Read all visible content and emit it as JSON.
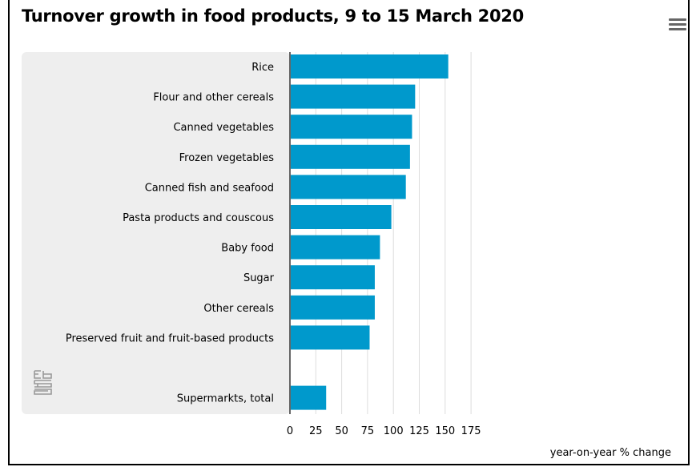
{
  "header": {
    "title": "Turnover growth in food products, 9 to 15 March 2020"
  },
  "icons": {
    "menu": "hamburger-menu-icon",
    "logo": "cbs-logo"
  },
  "colors": {
    "bar": "#0099cc",
    "grid": "#dddddd",
    "panel": "#eeeeee",
    "axis": "#666666"
  },
  "chart_data": {
    "type": "bar",
    "orientation": "horizontal",
    "categories": [
      "Rice",
      "Flour and other cereals",
      "Canned vegetables",
      "Frozen vegetables",
      "Canned fish and seafood",
      "Pasta products and couscous",
      "Baby food",
      "Sugar",
      "Other cereals",
      "Preserved fruit and fruit-based products",
      "",
      "Supermarkts, total"
    ],
    "values": [
      153,
      121,
      118,
      116,
      112,
      98,
      87,
      82,
      82,
      77,
      null,
      35
    ],
    "xlabel": "year-on-year % change",
    "ylabel": "",
    "xlim": [
      0,
      175
    ],
    "xticks": [
      0,
      25,
      50,
      75,
      100,
      125,
      150,
      175
    ],
    "grid": "vertical"
  }
}
